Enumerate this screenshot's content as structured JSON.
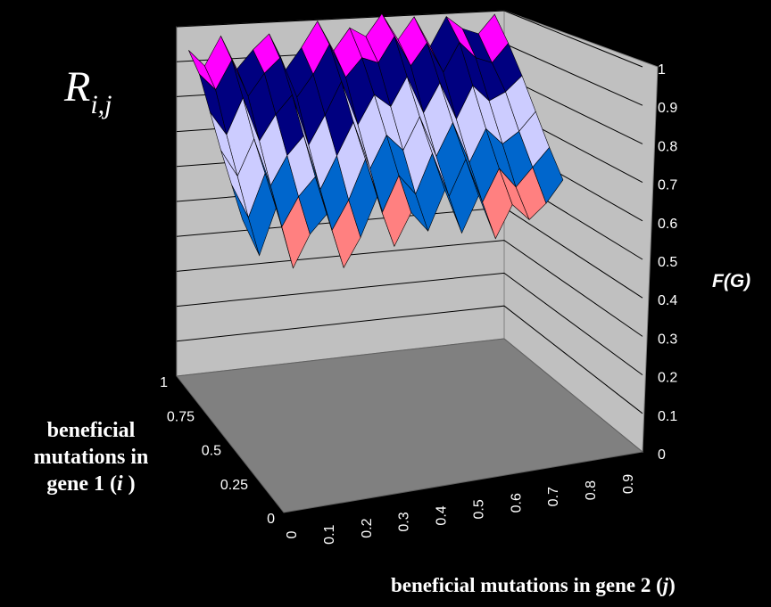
{
  "chart_data": {
    "type": "surface",
    "title": "R",
    "title_subscript": "i,j",
    "zlabel": "F(G)",
    "ylabel_prefix": "beneficial mutations in gene 1 (",
    "ylabel_var": "i",
    "ylabel_suffix": " )",
    "xlabel_prefix": "beneficial mutations in gene 2 (",
    "xlabel_var": "j",
    "xlabel_suffix": ")",
    "z_ticks": [
      "0",
      "0.1",
      "0.2",
      "0.3",
      "0.4",
      "0.5",
      "0.6",
      "0.7",
      "0.8",
      "0.9",
      "1"
    ],
    "y_ticks": [
      "0",
      "0.25",
      "0.5",
      "0.75",
      "1"
    ],
    "x_ticks": [
      "0",
      "0.1",
      "0.2",
      "0.3",
      "0.4",
      "0.5",
      "0.6",
      "0.7",
      "0.8",
      "0.9"
    ],
    "zlim": [
      0,
      1
    ],
    "band_colors": [
      "#ff8080",
      "#0066cc",
      "#ccccff",
      "#000080",
      "#ff00ff"
    ],
    "band_edges": [
      0.5,
      0.6,
      0.7,
      0.8,
      0.9,
      1.0
    ],
    "wall_color": "#c0c0c0",
    "floor_color": "#808080",
    "grid": true,
    "surface_rows": [
      [
        0.95,
        0.9,
        0.98,
        0.88,
        0.93,
        0.97,
        0.86,
        0.92,
        0.99,
        0.9,
        0.96,
        0.93,
        0.99,
        0.91,
        0.97,
        0.88,
        0.96,
        0.92,
        0.9,
        0.95
      ],
      [
        0.92,
        0.87,
        0.95,
        0.84,
        0.9,
        0.94,
        0.82,
        0.88,
        0.96,
        0.86,
        0.91,
        0.89,
        0.96,
        0.87,
        0.93,
        0.84,
        0.92,
        0.87,
        0.85,
        0.9
      ],
      [
        0.85,
        0.78,
        0.88,
        0.75,
        0.82,
        0.87,
        0.72,
        0.8,
        0.89,
        0.76,
        0.84,
        0.8,
        0.88,
        0.77,
        0.85,
        0.74,
        0.83,
        0.78,
        0.8,
        0.84
      ],
      [
        0.78,
        0.7,
        0.8,
        0.66,
        0.74,
        0.79,
        0.63,
        0.72,
        0.81,
        0.67,
        0.76,
        0.71,
        0.8,
        0.68,
        0.77,
        0.65,
        0.74,
        0.69,
        0.72,
        0.77
      ],
      [
        0.72,
        0.62,
        0.74,
        0.58,
        0.66,
        0.71,
        0.55,
        0.63,
        0.74,
        0.58,
        0.68,
        0.62,
        0.73,
        0.6,
        0.7,
        0.57,
        0.66,
        0.6,
        0.65,
        0.7
      ],
      [
        0.66,
        0.55,
        0.68,
        0.5,
        0.59,
        0.64,
        0.48,
        0.56,
        0.67,
        0.52,
        0.61,
        0.55,
        0.66,
        0.53,
        0.63,
        0.5,
        0.59,
        0.54,
        0.58,
        0.64
      ]
    ]
  }
}
